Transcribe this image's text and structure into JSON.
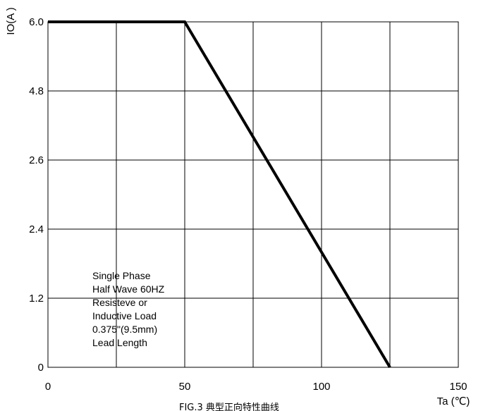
{
  "chart_data": {
    "type": "line",
    "ylabel": "IO(A )",
    "xlabel": "Ta (℃)",
    "caption": "FIG.3   典型正向特性曲线",
    "x_ticks": [
      "0",
      "50",
      "100",
      "150"
    ],
    "y_ticks": [
      "0",
      "1.2",
      "2.4",
      "2.6",
      "4.8",
      "6.0"
    ],
    "xlim": [
      0,
      150
    ],
    "grid": true,
    "x_gridlines": [
      25,
      50,
      75,
      100,
      125
    ],
    "annotation": [
      "Single Phase",
      "Half Wave 60HZ",
      "Resisteve or",
      "Inductive Load",
      "0.375\"(9.5mm)",
      "Lead Length"
    ],
    "series": [
      {
        "points": [
          {
            "x": 0,
            "y": "6.0"
          },
          {
            "x": 50,
            "y": "6.0"
          },
          {
            "x": 125,
            "y": "0"
          }
        ]
      }
    ],
    "line_color": "#000000"
  }
}
